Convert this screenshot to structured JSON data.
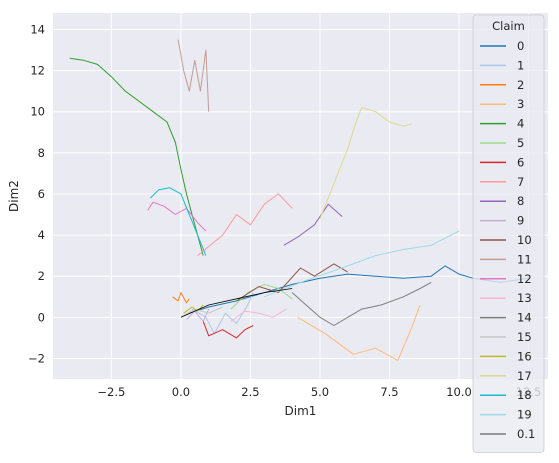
{
  "chart_data": {
    "type": "line",
    "xlabel": "Dim1",
    "ylabel": "Dim2",
    "xlim": [
      -4.6,
      13.2
    ],
    "ylim": [
      -3.0,
      14.8
    ],
    "xticks": [
      -2.5,
      0.0,
      2.5,
      5.0,
      7.5,
      10.0,
      12.5
    ],
    "xtick_labels": [
      "−2.5",
      "0.0",
      "2.5",
      "5.0",
      "7.5",
      "10.0",
      "12.5"
    ],
    "yticks": [
      -2,
      0,
      2,
      4,
      6,
      8,
      10,
      12,
      14
    ],
    "ytick_labels": [
      "−2",
      "0",
      "2",
      "4",
      "6",
      "8",
      "10",
      "12",
      "14"
    ],
    "grid": true,
    "legend": {
      "title": "Claim",
      "placement": "right",
      "entries": [
        {
          "label": "0",
          "color": "#1f77b4"
        },
        {
          "label": "1",
          "color": "#aec7e8"
        },
        {
          "label": "2",
          "color": "#ff7f0e"
        },
        {
          "label": "3",
          "color": "#ffbb78"
        },
        {
          "label": "4",
          "color": "#2ca02c"
        },
        {
          "label": "5",
          "color": "#98df8a"
        },
        {
          "label": "6",
          "color": "#d62728"
        },
        {
          "label": "7",
          "color": "#ff9896"
        },
        {
          "label": "8",
          "color": "#9467bd"
        },
        {
          "label": "9",
          "color": "#c5b0d5"
        },
        {
          "label": "10",
          "color": "#8c564b"
        },
        {
          "label": "11",
          "color": "#c49c94"
        },
        {
          "label": "12",
          "color": "#e377c2"
        },
        {
          "label": "13",
          "color": "#f7b6d2"
        },
        {
          "label": "14",
          "color": "#7f7f7f"
        },
        {
          "label": "15",
          "color": "#c7c7c7"
        },
        {
          "label": "16",
          "color": "#bcbd22"
        },
        {
          "label": "17",
          "color": "#dbdb8d"
        },
        {
          "label": "18",
          "color": "#17becf"
        },
        {
          "label": "19",
          "color": "#9edae5"
        },
        {
          "label": "0.1",
          "color": "#000000"
        }
      ]
    },
    "series": [
      {
        "name": "0",
        "color": "#1f77b4",
        "points": [
          [
            0.3,
            0.2
          ],
          [
            1.0,
            0.5
          ],
          [
            2.0,
            0.8
          ],
          [
            3.0,
            1.2
          ],
          [
            4.0,
            1.6
          ],
          [
            5.0,
            1.9
          ],
          [
            6.0,
            2.1
          ],
          [
            7.0,
            2.0
          ],
          [
            8.0,
            1.9
          ],
          [
            9.0,
            2.0
          ],
          [
            9.5,
            2.5
          ],
          [
            10.0,
            2.1
          ],
          [
            10.5,
            1.9
          ],
          [
            11.5,
            1.7
          ],
          [
            12.5,
            1.9
          ]
        ]
      },
      {
        "name": "1",
        "color": "#aec7e8",
        "points": [
          [
            0.4,
            0.4
          ],
          [
            0.9,
            0.0
          ],
          [
            1.2,
            -0.8
          ],
          [
            1.6,
            0.2
          ],
          [
            2.0,
            -0.3
          ],
          [
            2.4,
            0.6
          ],
          [
            2.6,
            1.2
          ]
        ]
      },
      {
        "name": "2",
        "color": "#ff7f0e",
        "points": [
          [
            -0.3,
            1.0
          ],
          [
            -0.1,
            0.8
          ],
          [
            0.0,
            1.2
          ],
          [
            0.2,
            0.7
          ],
          [
            0.3,
            0.9
          ]
        ]
      },
      {
        "name": "3",
        "color": "#ffbb78",
        "points": [
          [
            4.2,
            0.0
          ],
          [
            5.2,
            -0.8
          ],
          [
            6.2,
            -1.8
          ],
          [
            7.0,
            -1.5
          ],
          [
            7.8,
            -2.1
          ],
          [
            8.3,
            -0.5
          ],
          [
            8.6,
            0.6
          ]
        ]
      },
      {
        "name": "4",
        "color": "#2ca02c",
        "points": [
          [
            -4.0,
            12.6
          ],
          [
            -3.5,
            12.5
          ],
          [
            -3.0,
            12.3
          ],
          [
            -2.5,
            11.7
          ],
          [
            -2.0,
            11.0
          ],
          [
            -1.5,
            10.5
          ],
          [
            -1.0,
            10.0
          ],
          [
            -0.5,
            9.5
          ],
          [
            -0.2,
            8.5
          ],
          [
            0.0,
            7.2
          ],
          [
            0.2,
            6.0
          ],
          [
            0.4,
            5.0
          ],
          [
            0.6,
            4.0
          ],
          [
            0.8,
            3.0
          ]
        ]
      },
      {
        "name": "5",
        "color": "#98df8a",
        "points": [
          [
            1.8,
            0.4
          ],
          [
            2.4,
            1.2
          ],
          [
            3.0,
            1.6
          ],
          [
            3.5,
            1.4
          ],
          [
            4.0,
            0.9
          ]
        ]
      },
      {
        "name": "6",
        "color": "#d62728",
        "points": [
          [
            0.8,
            -0.2
          ],
          [
            1.0,
            -0.9
          ],
          [
            1.5,
            -0.6
          ],
          [
            2.0,
            -1.0
          ],
          [
            2.3,
            -0.6
          ],
          [
            2.6,
            -0.4
          ]
        ]
      },
      {
        "name": "7",
        "color": "#ff9896",
        "points": [
          [
            0.6,
            3.0
          ],
          [
            1.5,
            4.0
          ],
          [
            2.0,
            5.0
          ],
          [
            2.5,
            4.5
          ],
          [
            3.0,
            5.5
          ],
          [
            3.5,
            6.0
          ],
          [
            4.0,
            5.3
          ]
        ]
      },
      {
        "name": "8",
        "color": "#9467bd",
        "points": [
          [
            3.7,
            3.5
          ],
          [
            4.2,
            3.9
          ],
          [
            4.8,
            4.5
          ],
          [
            5.3,
            5.5
          ],
          [
            5.8,
            4.9
          ]
        ]
      },
      {
        "name": "9",
        "color": "#c5b0d5",
        "points": [
          [
            0.2,
            -0.1
          ],
          [
            0.5,
            0.3
          ],
          [
            0.8,
            -0.2
          ],
          [
            1.0,
            0.4
          ]
        ]
      },
      {
        "name": "10",
        "color": "#8c564b",
        "points": [
          [
            2.0,
            0.8
          ],
          [
            2.8,
            1.5
          ],
          [
            3.5,
            1.2
          ],
          [
            4.3,
            2.4
          ],
          [
            4.8,
            2.0
          ],
          [
            5.5,
            2.6
          ],
          [
            6.0,
            2.2
          ]
        ]
      },
      {
        "name": "11",
        "color": "#c49c94",
        "points": [
          [
            -0.1,
            13.5
          ],
          [
            0.1,
            12.0
          ],
          [
            0.3,
            11.0
          ],
          [
            0.5,
            12.5
          ],
          [
            0.7,
            11.0
          ],
          [
            0.9,
            13.0
          ],
          [
            1.0,
            10.0
          ]
        ]
      },
      {
        "name": "12",
        "color": "#e377c2",
        "points": [
          [
            -1.2,
            5.2
          ],
          [
            -1.0,
            5.6
          ],
          [
            -0.6,
            5.4
          ],
          [
            -0.2,
            5.0
          ],
          [
            0.2,
            5.3
          ],
          [
            0.6,
            4.6
          ],
          [
            0.9,
            4.2
          ]
        ]
      },
      {
        "name": "13",
        "color": "#f7b6d2",
        "points": [
          [
            1.8,
            -0.2
          ],
          [
            2.3,
            0.3
          ],
          [
            2.8,
            0.2
          ],
          [
            3.3,
            0.0
          ],
          [
            3.8,
            0.4
          ]
        ]
      },
      {
        "name": "14",
        "color": "#7f7f7f",
        "points": [
          [
            4.0,
            1.2
          ],
          [
            4.5,
            0.6
          ],
          [
            5.0,
            0.0
          ],
          [
            5.5,
            -0.4
          ],
          [
            6.0,
            0.0
          ],
          [
            6.5,
            0.4
          ],
          [
            7.2,
            0.6
          ],
          [
            8.0,
            1.0
          ],
          [
            8.6,
            1.4
          ],
          [
            9.0,
            1.7
          ]
        ]
      },
      {
        "name": "15",
        "color": "#c7c7c7",
        "points": [
          [
            0.0,
            0.0
          ],
          [
            0.5,
            0.4
          ],
          [
            1.0,
            0.2
          ],
          [
            1.5,
            0.5
          ]
        ]
      },
      {
        "name": "16",
        "color": "#bcbd22",
        "points": [
          [
            0.1,
            0.2
          ],
          [
            0.4,
            0.5
          ],
          [
            0.6,
            0.3
          ],
          [
            0.8,
            0.6
          ]
        ]
      },
      {
        "name": "17",
        "color": "#dbdb8d",
        "points": [
          [
            5.0,
            4.8
          ],
          [
            5.5,
            6.5
          ],
          [
            6.0,
            8.2
          ],
          [
            6.3,
            9.5
          ],
          [
            6.5,
            10.2
          ],
          [
            7.0,
            10.0
          ],
          [
            7.5,
            9.5
          ],
          [
            8.0,
            9.3
          ],
          [
            8.3,
            9.4
          ]
        ]
      },
      {
        "name": "18",
        "color": "#17becf",
        "points": [
          [
            -1.1,
            5.8
          ],
          [
            -0.8,
            6.2
          ],
          [
            -0.4,
            6.3
          ],
          [
            0.0,
            6.0
          ],
          [
            0.3,
            5.0
          ],
          [
            0.6,
            4.0
          ],
          [
            0.9,
            3.0
          ]
        ]
      },
      {
        "name": "19",
        "color": "#9edae5",
        "points": [
          [
            3.0,
            1.0
          ],
          [
            4.5,
            1.8
          ],
          [
            6.0,
            2.5
          ],
          [
            7.0,
            3.0
          ],
          [
            8.0,
            3.3
          ],
          [
            9.0,
            3.5
          ],
          [
            10.0,
            4.2
          ]
        ]
      },
      {
        "name": "0.1",
        "color": "#000000",
        "points": [
          [
            0.0,
            0.0
          ],
          [
            0.5,
            0.3
          ],
          [
            1.0,
            0.6
          ],
          [
            2.0,
            0.9
          ],
          [
            3.0,
            1.2
          ],
          [
            4.0,
            1.4
          ]
        ]
      }
    ]
  }
}
